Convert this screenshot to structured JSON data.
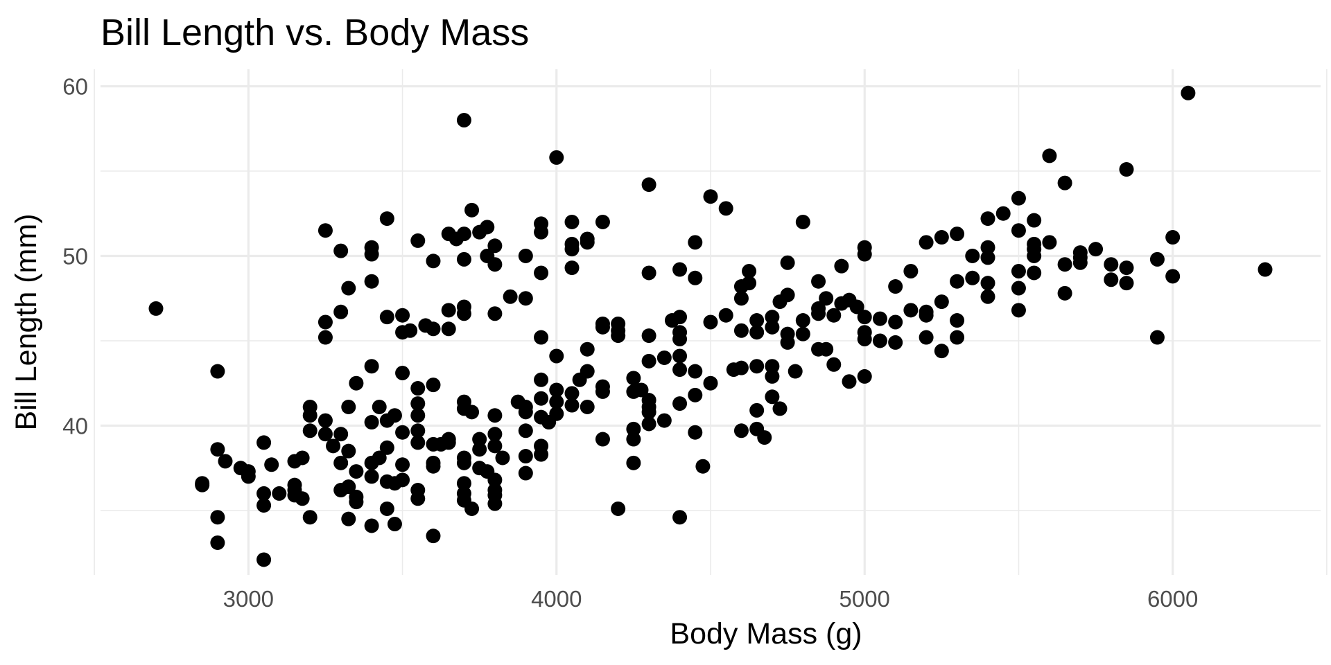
{
  "chart_data": {
    "type": "scatter",
    "title": "Bill Length vs. Body Mass",
    "xlabel": "Body Mass (g)",
    "ylabel": "Bill Length (mm)",
    "xlim": [
      2520,
      6480
    ],
    "ylim": [
      31.2,
      61
    ],
    "x_ticks": [
      3000,
      4000,
      5000,
      6000
    ],
    "y_ticks": [
      40,
      50,
      60
    ],
    "x_minor_ticks": [
      2500,
      3500,
      4500,
      5500,
      6500
    ],
    "y_minor_ticks": [
      35,
      45,
      55
    ],
    "grid": true,
    "point_color": "#000000",
    "grid_color": "#ebebeb",
    "points": [
      [
        2700,
        46.9
      ],
      [
        2850,
        36.5
      ],
      [
        2850,
        36.6
      ],
      [
        2900,
        43.2
      ],
      [
        2900,
        38.6
      ],
      [
        2900,
        34.6
      ],
      [
        2900,
        33.1
      ],
      [
        2925,
        37.9
      ],
      [
        2975,
        37.5
      ],
      [
        3000,
        37.3
      ],
      [
        3000,
        37.0
      ],
      [
        3050,
        39.0
      ],
      [
        3050,
        36.0
      ],
      [
        3050,
        35.3
      ],
      [
        3050,
        32.1
      ],
      [
        3075,
        37.7
      ],
      [
        3100,
        36.0
      ],
      [
        3150,
        37.9
      ],
      [
        3150,
        36.5
      ],
      [
        3150,
        36.2
      ],
      [
        3150,
        35.9
      ],
      [
        3175,
        38.1
      ],
      [
        3175,
        35.7
      ],
      [
        3200,
        41.1
      ],
      [
        3200,
        40.6
      ],
      [
        3200,
        39.7
      ],
      [
        3200,
        34.6
      ],
      [
        3250,
        51.5
      ],
      [
        3250,
        46.1
      ],
      [
        3250,
        45.2
      ],
      [
        3250,
        40.3
      ],
      [
        3250,
        39.5
      ],
      [
        3275,
        38.8
      ],
      [
        3300,
        50.3
      ],
      [
        3300,
        46.7
      ],
      [
        3300,
        39.5
      ],
      [
        3300,
        37.8
      ],
      [
        3300,
        36.2
      ],
      [
        3325,
        48.1
      ],
      [
        3325,
        41.1
      ],
      [
        3325,
        38.5
      ],
      [
        3325,
        36.4
      ],
      [
        3325,
        34.5
      ],
      [
        3350,
        42.5
      ],
      [
        3350,
        37.3
      ],
      [
        3350,
        35.8
      ],
      [
        3350,
        35.5
      ],
      [
        3400,
        50.5
      ],
      [
        3400,
        50.1
      ],
      [
        3400,
        48.5
      ],
      [
        3400,
        43.5
      ],
      [
        3400,
        40.2
      ],
      [
        3400,
        37.8
      ],
      [
        3400,
        37.0
      ],
      [
        3400,
        34.1
      ],
      [
        3425,
        41.1
      ],
      [
        3425,
        38.1
      ],
      [
        3450,
        52.2
      ],
      [
        3450,
        46.4
      ],
      [
        3450,
        40.3
      ],
      [
        3450,
        38.7
      ],
      [
        3450,
        36.7
      ],
      [
        3450,
        35.1
      ],
      [
        3475,
        40.6
      ],
      [
        3475,
        36.6
      ],
      [
        3475,
        34.2
      ],
      [
        3500,
        46.5
      ],
      [
        3500,
        45.5
      ],
      [
        3500,
        43.1
      ],
      [
        3500,
        39.6
      ],
      [
        3500,
        37.7
      ],
      [
        3500,
        36.8
      ],
      [
        3525,
        45.6
      ],
      [
        3550,
        50.9
      ],
      [
        3550,
        42.2
      ],
      [
        3550,
        41.3
      ],
      [
        3550,
        40.6
      ],
      [
        3550,
        39.7
      ],
      [
        3550,
        39.0
      ],
      [
        3550,
        36.2
      ],
      [
        3550,
        35.7
      ],
      [
        3575,
        45.9
      ],
      [
        3600,
        49.7
      ],
      [
        3600,
        45.7
      ],
      [
        3600,
        42.4
      ],
      [
        3600,
        38.9
      ],
      [
        3600,
        37.8
      ],
      [
        3600,
        37.6
      ],
      [
        3600,
        33.5
      ],
      [
        3625,
        38.9
      ],
      [
        3650,
        51.3
      ],
      [
        3650,
        46.8
      ],
      [
        3650,
        45.7
      ],
      [
        3650,
        39.2
      ],
      [
        3650,
        39.0
      ],
      [
        3675,
        51.0
      ],
      [
        3700,
        58.0
      ],
      [
        3700,
        51.3
      ],
      [
        3700,
        49.8
      ],
      [
        3700,
        47.0
      ],
      [
        3700,
        46.6
      ],
      [
        3700,
        41.4
      ],
      [
        3700,
        41.0
      ],
      [
        3700,
        38.1
      ],
      [
        3700,
        37.8
      ],
      [
        3700,
        36.6
      ],
      [
        3700,
        36.0
      ],
      [
        3700,
        35.6
      ],
      [
        3725,
        52.7
      ],
      [
        3725,
        40.8
      ],
      [
        3725,
        35.1
      ],
      [
        3750,
        51.4
      ],
      [
        3750,
        39.2
      ],
      [
        3750,
        38.6
      ],
      [
        3750,
        37.5
      ],
      [
        3775,
        51.7
      ],
      [
        3775,
        37.3
      ],
      [
        3775,
        50.0
      ],
      [
        3800,
        50.6
      ],
      [
        3800,
        49.5
      ],
      [
        3800,
        46.6
      ],
      [
        3800,
        40.6
      ],
      [
        3800,
        39.5
      ],
      [
        3800,
        38.8
      ],
      [
        3800,
        36.8
      ],
      [
        3800,
        36.2
      ],
      [
        3800,
        35.9
      ],
      [
        3800,
        35.4
      ],
      [
        3825,
        38.1
      ],
      [
        3850,
        47.6
      ],
      [
        3875,
        41.4
      ],
      [
        3900,
        50.0
      ],
      [
        3900,
        47.5
      ],
      [
        3900,
        41.1
      ],
      [
        3900,
        40.8
      ],
      [
        3900,
        39.7
      ],
      [
        3900,
        38.2
      ],
      [
        3900,
        37.2
      ],
      [
        3950,
        51.9
      ],
      [
        3950,
        51.4
      ],
      [
        3950,
        49.0
      ],
      [
        3950,
        45.2
      ],
      [
        3950,
        42.7
      ],
      [
        3950,
        41.6
      ],
      [
        3950,
        40.5
      ],
      [
        3950,
        38.8
      ],
      [
        3950,
        38.3
      ],
      [
        3975,
        40.2
      ],
      [
        4000,
        55.8
      ],
      [
        4000,
        44.1
      ],
      [
        4000,
        42.1
      ],
      [
        4000,
        41.4
      ],
      [
        4000,
        40.7
      ],
      [
        4050,
        52.0
      ],
      [
        4050,
        50.7
      ],
      [
        4050,
        50.4
      ],
      [
        4050,
        49.3
      ],
      [
        4050,
        41.9
      ],
      [
        4050,
        41.2
      ],
      [
        4075,
        42.7
      ],
      [
        4100,
        51.0
      ],
      [
        4100,
        50.8
      ],
      [
        4100,
        44.5
      ],
      [
        4100,
        43.2
      ],
      [
        4100,
        41.1
      ],
      [
        4150,
        52.0
      ],
      [
        4150,
        46.0
      ],
      [
        4150,
        45.8
      ],
      [
        4150,
        42.3
      ],
      [
        4150,
        42.0
      ],
      [
        4150,
        39.2
      ],
      [
        4200,
        46.0
      ],
      [
        4200,
        45.6
      ],
      [
        4200,
        45.3
      ],
      [
        4200,
        35.1
      ],
      [
        4250,
        42.8
      ],
      [
        4250,
        42.0
      ],
      [
        4250,
        39.8
      ],
      [
        4250,
        39.2
      ],
      [
        4250,
        37.8
      ],
      [
        4275,
        42.1
      ],
      [
        4300,
        54.2
      ],
      [
        4300,
        49.0
      ],
      [
        4300,
        45.3
      ],
      [
        4300,
        43.8
      ],
      [
        4300,
        41.5
      ],
      [
        4300,
        41.1
      ],
      [
        4300,
        40.8
      ],
      [
        4300,
        40.1
      ],
      [
        4350,
        44.0
      ],
      [
        4350,
        40.3
      ],
      [
        4375,
        46.2
      ],
      [
        4400,
        49.2
      ],
      [
        4400,
        46.4
      ],
      [
        4400,
        45.5
      ],
      [
        4400,
        45.1
      ],
      [
        4400,
        44.1
      ],
      [
        4400,
        43.3
      ],
      [
        4400,
        41.3
      ],
      [
        4400,
        34.6
      ],
      [
        4450,
        50.8
      ],
      [
        4450,
        48.7
      ],
      [
        4450,
        43.2
      ],
      [
        4450,
        41.8
      ],
      [
        4450,
        39.6
      ],
      [
        4475,
        37.6
      ],
      [
        4500,
        53.5
      ],
      [
        4500,
        46.1
      ],
      [
        4500,
        42.5
      ],
      [
        4550,
        52.8
      ],
      [
        4550,
        46.5
      ],
      [
        4575,
        43.3
      ],
      [
        4600,
        48.2
      ],
      [
        4600,
        47.5
      ],
      [
        4600,
        45.6
      ],
      [
        4600,
        43.4
      ],
      [
        4600,
        39.7
      ],
      [
        4625,
        49.1
      ],
      [
        4625,
        48.4
      ],
      [
        4650,
        46.2
      ],
      [
        4650,
        45.5
      ],
      [
        4650,
        43.5
      ],
      [
        4650,
        40.9
      ],
      [
        4650,
        39.8
      ],
      [
        4675,
        39.3
      ],
      [
        4700,
        46.4
      ],
      [
        4700,
        45.8
      ],
      [
        4700,
        43.5
      ],
      [
        4700,
        42.9
      ],
      [
        4700,
        41.7
      ],
      [
        4725,
        47.3
      ],
      [
        4725,
        41.0
      ],
      [
        4750,
        49.6
      ],
      [
        4750,
        47.7
      ],
      [
        4750,
        45.4
      ],
      [
        4750,
        44.9
      ],
      [
        4775,
        43.2
      ],
      [
        4800,
        52.0
      ],
      [
        4800,
        46.2
      ],
      [
        4800,
        45.4
      ],
      [
        4850,
        48.5
      ],
      [
        4850,
        46.9
      ],
      [
        4850,
        46.6
      ],
      [
        4850,
        44.5
      ],
      [
        4875,
        47.5
      ],
      [
        4875,
        44.5
      ],
      [
        4900,
        46.5
      ],
      [
        4900,
        43.6
      ],
      [
        4925,
        49.4
      ],
      [
        4925,
        47.2
      ],
      [
        4950,
        47.4
      ],
      [
        4950,
        42.6
      ],
      [
        4975,
        47.0
      ],
      [
        5000,
        50.5
      ],
      [
        5000,
        50.1
      ],
      [
        5000,
        46.4
      ],
      [
        5000,
        45.5
      ],
      [
        5000,
        45.1
      ],
      [
        5000,
        42.9
      ],
      [
        5050,
        46.3
      ],
      [
        5050,
        45.0
      ],
      [
        5100,
        48.2
      ],
      [
        5100,
        46.1
      ],
      [
        5100,
        44.9
      ],
      [
        5150,
        49.1
      ],
      [
        5150,
        46.8
      ],
      [
        5200,
        50.8
      ],
      [
        5200,
        46.7
      ],
      [
        5200,
        46.5
      ],
      [
        5200,
        45.2
      ],
      [
        5250,
        51.1
      ],
      [
        5250,
        47.3
      ],
      [
        5250,
        44.4
      ],
      [
        5300,
        51.3
      ],
      [
        5300,
        48.5
      ],
      [
        5300,
        46.2
      ],
      [
        5300,
        45.2
      ],
      [
        5350,
        50.0
      ],
      [
        5350,
        48.7
      ],
      [
        5400,
        52.2
      ],
      [
        5400,
        50.5
      ],
      [
        5400,
        49.9
      ],
      [
        5400,
        48.4
      ],
      [
        5400,
        47.6
      ],
      [
        5450,
        52.5
      ],
      [
        5500,
        53.4
      ],
      [
        5500,
        51.5
      ],
      [
        5500,
        49.1
      ],
      [
        5500,
        48.1
      ],
      [
        5500,
        46.8
      ],
      [
        5550,
        52.1
      ],
      [
        5550,
        50.7
      ],
      [
        5550,
        50.4
      ],
      [
        5550,
        50.0
      ],
      [
        5550,
        49.0
      ],
      [
        5600,
        55.9
      ],
      [
        5600,
        50.8
      ],
      [
        5650,
        54.3
      ],
      [
        5650,
        49.5
      ],
      [
        5650,
        47.8
      ],
      [
        5700,
        50.2
      ],
      [
        5700,
        49.9
      ],
      [
        5700,
        49.6
      ],
      [
        5750,
        50.4
      ],
      [
        5800,
        49.5
      ],
      [
        5800,
        48.6
      ],
      [
        5850,
        55.1
      ],
      [
        5850,
        49.3
      ],
      [
        5850,
        48.4
      ],
      [
        5950,
        49.8
      ],
      [
        5950,
        45.2
      ],
      [
        6000,
        51.1
      ],
      [
        6000,
        48.8
      ],
      [
        6050,
        59.6
      ],
      [
        6300,
        49.2
      ]
    ]
  }
}
